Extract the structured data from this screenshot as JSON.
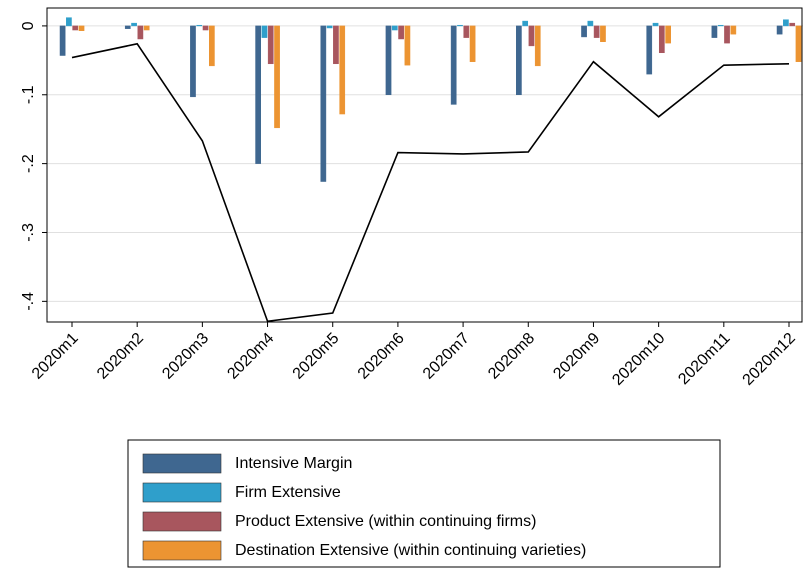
{
  "chart_data": {
    "type": "bar",
    "categories": [
      "2020m1",
      "2020m2",
      "2020m3",
      "2020m4",
      "2020m5",
      "2020m6",
      "2020m7",
      "2020m8",
      "2020m9",
      "2020m10",
      "2020m11",
      "2020m12"
    ],
    "series": [
      {
        "name": "Intensive Margin",
        "color": "#3f6790",
        "values": [
          -0.043,
          -0.004,
          -0.103,
          -0.2,
          -0.226,
          -0.1,
          -0.114,
          -0.1,
          -0.016,
          -0.07,
          -0.017,
          -0.012
        ]
      },
      {
        "name": "Firm Extensive",
        "color": "#2f9fcb",
        "values": [
          0.012,
          0.004,
          0.001,
          -0.017,
          -0.003,
          -0.006,
          0.001,
          0.007,
          0.007,
          0.004,
          0.001,
          0.009
        ]
      },
      {
        "name": "Product Extensive (within continuing firms)",
        "color": "#a8565e",
        "values": [
          -0.006,
          -0.019,
          -0.006,
          -0.055,
          -0.055,
          -0.019,
          -0.017,
          -0.029,
          -0.017,
          -0.039,
          -0.025,
          0.004
        ]
      },
      {
        "name": "Destination Extensive (within continuing varieties)",
        "color": "#ec9432",
        "values": [
          -0.007,
          -0.006,
          -0.058,
          -0.148,
          -0.128,
          -0.057,
          -0.052,
          -0.058,
          -0.023,
          -0.025,
          -0.012,
          -0.052
        ]
      }
    ],
    "line": {
      "color": "#000000",
      "values": [
        -0.046,
        -0.026,
        -0.167,
        -0.429,
        -0.417,
        -0.184,
        -0.186,
        -0.183,
        -0.052,
        -0.132,
        -0.057,
        -0.055
      ]
    },
    "ylim": [
      -0.43,
      0.026
    ],
    "yticks": [
      0,
      {
        "value": -0.1,
        "label": "-.1"
      },
      {
        "value": -0.2,
        "label": "-.2"
      },
      {
        "value": -0.3,
        "label": "-.3"
      },
      {
        "value": -0.4,
        "label": "-.4"
      }
    ],
    "grid": true
  }
}
